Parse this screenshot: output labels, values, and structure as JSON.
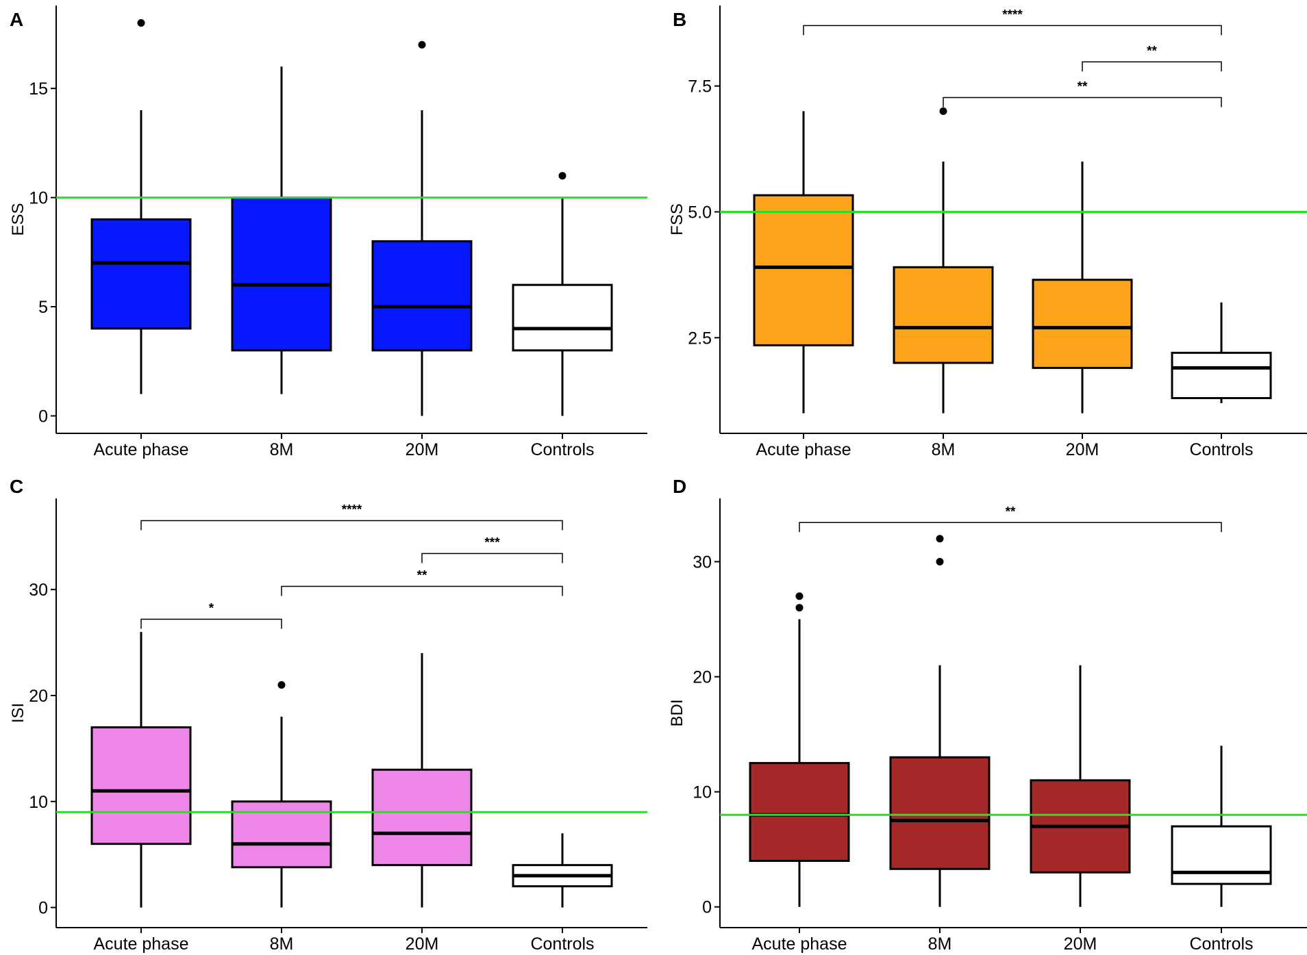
{
  "colors": {
    "threshold": "#1fe51f",
    "ink": "#000000",
    "controls": "#ffffff"
  },
  "chart_data": [
    {
      "panel": "A",
      "type": "box",
      "ylabel": "ESS",
      "xlabel": "",
      "categories": [
        "Acute phase",
        "8M",
        "20M",
        "Controls"
      ],
      "yticks": [
        "0",
        "5",
        "10",
        "15"
      ],
      "ytick_values": [
        0,
        5,
        10,
        15
      ],
      "ylim": [
        -0.8,
        18.8
      ],
      "threshold": 10,
      "fill": "#0718ff",
      "boxes": [
        {
          "whisker_low": 1,
          "q1": 4,
          "median": 7,
          "q3": 9,
          "whisker_high": 14,
          "outliers": [
            18
          ]
        },
        {
          "whisker_low": 1,
          "q1": 3,
          "median": 6,
          "q3": 10,
          "whisker_high": 16,
          "outliers": []
        },
        {
          "whisker_low": 0,
          "q1": 3,
          "median": 5,
          "q3": 8,
          "whisker_high": 14,
          "outliers": [
            17
          ]
        },
        {
          "whisker_low": 0,
          "q1": 3,
          "median": 4,
          "q3": 6,
          "whisker_high": 10,
          "outliers": [
            11
          ]
        }
      ],
      "brackets": []
    },
    {
      "panel": "B",
      "type": "box",
      "ylabel": "FSS",
      "xlabel": "",
      "categories": [
        "Acute phase",
        "8M",
        "20M",
        "Controls"
      ],
      "yticks": [
        "2.5",
        "5.0",
        "7.5"
      ],
      "ytick_values": [
        2.5,
        5.0,
        7.5
      ],
      "ylim": [
        0.6,
        9.1
      ],
      "threshold": 5.0,
      "fill": "#fda41a",
      "boxes": [
        {
          "whisker_low": 1,
          "q1": 2.35,
          "median": 3.9,
          "q3": 5.33,
          "whisker_high": 7,
          "outliers": []
        },
        {
          "whisker_low": 1,
          "q1": 2.0,
          "median": 2.7,
          "q3": 3.9,
          "whisker_high": 6,
          "outliers": [
            7
          ]
        },
        {
          "whisker_low": 1,
          "q1": 1.9,
          "median": 2.7,
          "q3": 3.65,
          "whisker_high": 6,
          "outliers": []
        },
        {
          "whisker_low": 1.2,
          "q1": 1.3,
          "median": 1.9,
          "q3": 2.2,
          "whisker_high": 3.2,
          "outliers": []
        }
      ],
      "brackets": [
        {
          "from": 0,
          "to": 3,
          "level": 8.7,
          "label": "****"
        },
        {
          "from": 2,
          "to": 3,
          "level": 7.98,
          "label": "**"
        },
        {
          "from": 1,
          "to": 3,
          "level": 7.27,
          "label": "**"
        }
      ]
    },
    {
      "panel": "C",
      "type": "box",
      "ylabel": "ISI",
      "xlabel": "",
      "categories": [
        "Acute phase",
        "8M",
        "20M",
        "Controls"
      ],
      "yticks": [
        "0",
        "10",
        "20",
        "30"
      ],
      "ytick_values": [
        0,
        10,
        20,
        30
      ],
      "ylim": [
        -1.9,
        38.6
      ],
      "threshold": 9,
      "fill": "#ee86ea",
      "boxes": [
        {
          "whisker_low": 0,
          "q1": 6,
          "median": 11,
          "q3": 17,
          "whisker_high": 26,
          "outliers": []
        },
        {
          "whisker_low": 0,
          "q1": 3.8,
          "median": 6,
          "q3": 10,
          "whisker_high": 18,
          "outliers": [
            21
          ]
        },
        {
          "whisker_low": 0,
          "q1": 4,
          "median": 7,
          "q3": 13,
          "whisker_high": 24,
          "outliers": []
        },
        {
          "whisker_low": 0,
          "q1": 2,
          "median": 3,
          "q3": 4,
          "whisker_high": 7,
          "outliers": []
        }
      ],
      "brackets": [
        {
          "from": 0,
          "to": 3,
          "level": 36.5,
          "label": "****"
        },
        {
          "from": 2,
          "to": 3,
          "level": 33.4,
          "label": "***"
        },
        {
          "from": 1,
          "to": 3,
          "level": 30.3,
          "label": "**"
        },
        {
          "from": 0,
          "to": 1,
          "level": 27.2,
          "label": "*"
        }
      ]
    },
    {
      "panel": "D",
      "type": "box",
      "ylabel": "BDI",
      "xlabel": "",
      "categories": [
        "Acute phase",
        "8M",
        "20M",
        "Controls"
      ],
      "yticks": [
        "0",
        "10",
        "20",
        "30"
      ],
      "ytick_values": [
        0,
        10,
        20,
        30
      ],
      "ylim": [
        -1.8,
        35.5
      ],
      "threshold": 8,
      "fill": "#a52829",
      "boxes": [
        {
          "whisker_low": 0,
          "q1": 4,
          "median": 8,
          "q3": 12.5,
          "whisker_high": 25,
          "outliers": [
            26,
            27
          ]
        },
        {
          "whisker_low": 0,
          "q1": 3.3,
          "median": 7.5,
          "q3": 13,
          "whisker_high": 21,
          "outliers": [
            30,
            32
          ]
        },
        {
          "whisker_low": 0,
          "q1": 3,
          "median": 7,
          "q3": 11,
          "whisker_high": 21,
          "outliers": []
        },
        {
          "whisker_low": 0,
          "q1": 2,
          "median": 3,
          "q3": 7,
          "whisker_high": 14,
          "outliers": []
        }
      ],
      "brackets": [
        {
          "from": 0,
          "to": 3,
          "level": 33.4,
          "label": "**"
        }
      ]
    }
  ]
}
